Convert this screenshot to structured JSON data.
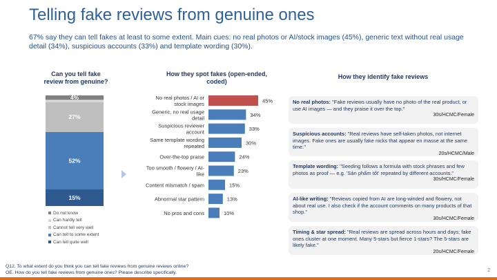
{
  "title": "Telling fake reviews from genuine ones",
  "subtitle": "67% say they can tell fakes at least to some extent. Main cues: no real photos or AI/stock images (45%), generic text without real usage detail (34%), suspicious accounts (33%) and template wording (30%).",
  "colors": {
    "title": "#2e5f9e",
    "highlight_bar": "#c0504d",
    "bar": "#4a7ebb",
    "accent_bar": "#e36c1a"
  },
  "stacked_title": [
    "Can you tell fake",
    "review from genuine?"
  ],
  "bars_title": [
    "How they spot fakes (open-ended,",
    "coded)"
  ],
  "quotes_title": "How they identify fake reviews",
  "chart_data": [
    {
      "type": "bar",
      "stacked": true,
      "title": "Can you tell fake review from genuine?",
      "series": [
        {
          "name": "Can tell quite well",
          "value": 15,
          "label": "15%",
          "color": "#2f5a8f"
        },
        {
          "name": "Can tell to some extent",
          "value": 52,
          "label": "52%",
          "color": "#4a7ebb"
        },
        {
          "name": "Cannot tell very well",
          "value": 27,
          "label": "27%",
          "color": "#bfbfbf"
        },
        {
          "name": "Can hardly tell",
          "value": 2,
          "label": "",
          "color": "#d9d9d9"
        },
        {
          "name": "Do not know",
          "value": 4,
          "label": "4%",
          "color": "#808080"
        }
      ],
      "legend": [
        "Do not know",
        "Can hardly tell",
        "Cannot tell very well",
        "Can tell to some extent",
        "Can tell quite well"
      ],
      "ylim": [
        0,
        100
      ]
    },
    {
      "type": "bar",
      "orientation": "horizontal",
      "title": "How they spot fakes (open-ended, coded)",
      "categories": [
        [
          "No real photos / AI or",
          "stock images"
        ],
        [
          "Generic, no real usage",
          "detail"
        ],
        [
          "Suspicious reviewer",
          "account"
        ],
        [
          "Same template wording",
          "repeated"
        ],
        [
          "Over-the-top praise"
        ],
        [
          "Too smooth / flowery / AI-",
          "like"
        ],
        [
          "Content mismatch / spam"
        ],
        [
          "Abnormal star pattern"
        ],
        [
          "No pros and cons"
        ]
      ],
      "values": [
        45,
        34,
        33,
        30,
        24,
        23,
        15,
        13,
        10
      ],
      "labels": [
        "45%",
        "34%",
        "33%",
        "30%",
        "24%",
        "23%",
        "15%",
        "13%",
        "10%"
      ],
      "highlight_index": 0,
      "xlim": [
        0,
        50
      ]
    }
  ],
  "legend_items": [
    {
      "label": "Do not know",
      "color": "#808080"
    },
    {
      "label": "Can hardly tell",
      "color": "#d9d9d9"
    },
    {
      "label": "Cannot tell very well",
      "color": "#bfbfbf"
    },
    {
      "label": "Can tell to some extent",
      "color": "#4a7ebb"
    },
    {
      "label": "Can tell quite well",
      "color": "#2f5a8f"
    }
  ],
  "quotes": [
    {
      "label": "No real photos:",
      "text": " \"Fake reviews usually have no photo of the real product, or use AI images — and they praise it over the top.\"",
      "source": "30s/HCMC/Female"
    },
    {
      "label": "Suspicious accounts:",
      "text": " \"Real reviews have self-taken photos, not internet images. Fake ones are usually fake nicks that appear en masse at the same time.\"",
      "source": "20s/HCMC/Male"
    },
    {
      "label": "Template wording:",
      "text": " \"Seeding follows a formula with stock phrases and few photos as proof — e.g. 'Sản phẩm tốt' repeated by different accounts.\"",
      "source": "30s/HCMC/Female"
    },
    {
      "label": "AI-like writing:",
      "text": " \"Reviews copied from AI are long-winded and flowery, not about real use. I also check if the account comments on many products of that shop.\"",
      "source": "30s/HCMC/Female"
    },
    {
      "label": "Timing & star spread:",
      "text": " \"Real reviews are spread across hours and days; fake ones cluster at one moment. Many 5-stars but fierce 1-stars? The 5-stars are likely fake.\"",
      "source": "20s/HCMC/Female"
    }
  ],
  "footnote": [
    "Q12. To what extent do you think you can tell fake reviews from genuine reviews online?",
    "OE. How do you tell fake reviews from genuine ones? Please describe specifically."
  ],
  "page_number": "2"
}
